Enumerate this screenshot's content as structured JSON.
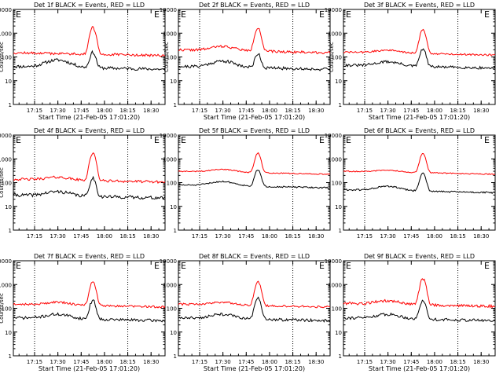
{
  "figure": {
    "title_template": "Det {n}f BLACK = Events, RED = LLD",
    "corner_mark": "E"
  },
  "colors": {
    "events": "#000000",
    "lld": "#ff0000",
    "axis": "#000000",
    "background": "#ffffff"
  },
  "chart_data": [
    {
      "type": "line",
      "title": "Det 1f BLACK = Events, RED = LLD",
      "detector": "1f",
      "xlabel": "Start Time (21-Feb-05 17:01:20)",
      "ylabel": "Counts/sec",
      "x_range": [
        "17:01:20",
        "18:39:00"
      ],
      "x_ticks": [
        "17:15",
        "17:30",
        "17:45",
        "18:00",
        "18:15",
        "18:30"
      ],
      "y_scale": "log",
      "ylim": [
        1,
        10000
      ],
      "y_ticks": [
        "1",
        "10",
        "100",
        "1000",
        "10000"
      ],
      "tick_label_visibility": "both",
      "markers": [
        "17:15",
        "18:15"
      ],
      "series": [
        {
          "name": "Events",
          "color": "#000000",
          "base": 40,
          "shoulder": 2.0,
          "peak": 180,
          "noise": 0.15,
          "seed": 11
        },
        {
          "name": "LLD",
          "color": "#ff0000",
          "base": 150,
          "shoulder": 1.0,
          "peak": 2000,
          "noise": 0.12,
          "seed": 12
        }
      ]
    },
    {
      "type": "line",
      "title": "Det 2f BLACK = Events, RED = LLD",
      "detector": "2f",
      "xlabel": "Start Time (21-Feb-05 17:01:20)",
      "ylabel": "Counts/sec",
      "x_range": [
        "17:01:20",
        "18:39:00"
      ],
      "x_ticks": [
        "17:15",
        "17:30",
        "17:45",
        "18:00",
        "18:15",
        "18:30"
      ],
      "y_scale": "log",
      "ylim": [
        1,
        10000
      ],
      "y_ticks": [
        "1",
        "10",
        "100",
        "1000",
        "10000"
      ],
      "tick_label_visibility": "both",
      "markers": [
        "17:15",
        "18:15"
      ],
      "series": [
        {
          "name": "Events",
          "color": "#000000",
          "base": 40,
          "shoulder": 1.8,
          "peak": 160,
          "noise": 0.15,
          "seed": 21
        },
        {
          "name": "LLD",
          "color": "#ff0000",
          "base": 200,
          "shoulder": 1.5,
          "peak": 2000,
          "noise": 0.12,
          "seed": 22
        }
      ]
    },
    {
      "type": "line",
      "title": "Det 3f BLACK = Events, RED = LLD",
      "detector": "3f",
      "xlabel": "Start Time (21-Feb-05 17:01:20)",
      "ylabel": "Counts/sec",
      "x_range": [
        "17:01:20",
        "18:39:00"
      ],
      "x_ticks": [
        "17:15",
        "17:30",
        "17:45",
        "18:00",
        "18:15",
        "18:30"
      ],
      "y_scale": "log",
      "ylim": [
        1,
        10000
      ],
      "y_ticks": [
        "1",
        "10",
        "100",
        "1000",
        "10000"
      ],
      "tick_label_visibility": "both",
      "markers": [
        "17:15",
        "18:15"
      ],
      "series": [
        {
          "name": "Events",
          "color": "#000000",
          "base": 45,
          "shoulder": 1.5,
          "peak": 250,
          "noise": 0.13,
          "seed": 31
        },
        {
          "name": "LLD",
          "color": "#ff0000",
          "base": 160,
          "shoulder": 1.3,
          "peak": 1700,
          "noise": 0.09,
          "seed": 32
        }
      ]
    },
    {
      "type": "line",
      "title": "Det 4f BLACK = Events, RED = LLD",
      "detector": "4f",
      "xlabel": "",
      "ylabel": "Counts/sec",
      "x_range": [
        "17:01:20",
        "18:39:00"
      ],
      "x_ticks": [
        "17:15",
        "17:30",
        "17:45",
        "18:00",
        "18:15",
        "18:30"
      ],
      "y_scale": "log",
      "ylim": [
        1,
        10000
      ],
      "y_ticks": [
        "1",
        "10",
        "100",
        "1000",
        "10000"
      ],
      "tick_label_visibility": "both",
      "markers": [
        "17:15",
        "18:15"
      ],
      "series": [
        {
          "name": "Events",
          "color": "#000000",
          "base": 30,
          "shoulder": 1.5,
          "peak": 180,
          "noise": 0.16,
          "seed": 41
        },
        {
          "name": "LLD",
          "color": "#ff0000",
          "base": 140,
          "shoulder": 1.3,
          "peak": 2000,
          "noise": 0.12,
          "seed": 42
        }
      ]
    },
    {
      "type": "line",
      "title": "Det 5f BLACK = Events, RED = LLD",
      "detector": "5f",
      "xlabel": "",
      "ylabel": "",
      "x_range": [
        "17:01:20",
        "18:39:00"
      ],
      "x_ticks": [
        "17:15",
        "17:30",
        "17:45",
        "18:00",
        "18:15",
        "18:30"
      ],
      "y_scale": "log",
      "ylim": [
        1,
        10000
      ],
      "y_ticks": [
        "1",
        "10",
        "100",
        "1000",
        "10000"
      ],
      "tick_label_visibility": "both",
      "markers": [
        "17:15",
        "18:15"
      ],
      "series": [
        {
          "name": "Events",
          "color": "#000000",
          "base": 80,
          "shoulder": 1.5,
          "peak": 400,
          "noise": 0.07,
          "seed": 51
        },
        {
          "name": "LLD",
          "color": "#ff0000",
          "base": 300,
          "shoulder": 1.3,
          "peak": 2000,
          "noise": 0.05,
          "seed": 52
        }
      ]
    },
    {
      "type": "line",
      "title": "Det 6f BLACK = Events, RED = LLD",
      "detector": "6f",
      "xlabel": "",
      "ylabel": "",
      "x_range": [
        "17:01:20",
        "18:39:00"
      ],
      "x_ticks": [
        "17:15",
        "17:30",
        "17:45",
        "18:00",
        "18:15",
        "18:30"
      ],
      "y_scale": "log",
      "ylim": [
        1,
        10000
      ],
      "y_ticks": [
        "1",
        "10",
        "100",
        "1000",
        "10000"
      ],
      "tick_label_visibility": "both",
      "markers": [
        "17:15",
        "18:15"
      ],
      "series": [
        {
          "name": "Events",
          "color": "#000000",
          "base": 50,
          "shoulder": 1.5,
          "peak": 300,
          "noise": 0.08,
          "seed": 61
        },
        {
          "name": "LLD",
          "color": "#ff0000",
          "base": 300,
          "shoulder": 1.2,
          "peak": 2000,
          "noise": 0.05,
          "seed": 62
        }
      ]
    },
    {
      "type": "line",
      "title": "Det 7f BLACK = Events, RED = LLD",
      "detector": "7f",
      "xlabel": "Start Time (21-Feb-05 17:01:20)",
      "ylabel": "Counts/sec",
      "x_range": [
        "17:01:20",
        "18:39:00"
      ],
      "x_ticks": [
        "17:15",
        "17:30",
        "17:45",
        "18:00",
        "18:15",
        "18:30"
      ],
      "y_scale": "log",
      "ylim": [
        1,
        10000
      ],
      "y_ticks": [
        "1",
        "10",
        "100",
        "1000",
        "10000"
      ],
      "tick_label_visibility": "both",
      "markers": [
        "17:15",
        "18:15"
      ],
      "series": [
        {
          "name": "Events",
          "color": "#000000",
          "base": 40,
          "shoulder": 1.5,
          "peak": 250,
          "noise": 0.14,
          "seed": 71
        },
        {
          "name": "LLD",
          "color": "#ff0000",
          "base": 150,
          "shoulder": 1.3,
          "peak": 1500,
          "noise": 0.1,
          "seed": 72
        }
      ]
    },
    {
      "type": "line",
      "title": "Det 8f BLACK = Events, RED = LLD",
      "detector": "8f",
      "xlabel": "Start Time (21-Feb-05 17:01:20)",
      "ylabel": "",
      "x_range": [
        "17:01:20",
        "18:39:00"
      ],
      "x_ticks": [
        "17:15",
        "17:30",
        "17:45",
        "18:00",
        "18:15",
        "18:30"
      ],
      "y_scale": "log",
      "ylim": [
        1,
        10000
      ],
      "y_ticks": [
        "1",
        "10",
        "100",
        "1000",
        "10000"
      ],
      "tick_label_visibility": "both",
      "markers": [
        "17:15",
        "18:15"
      ],
      "series": [
        {
          "name": "Events",
          "color": "#000000",
          "base": 40,
          "shoulder": 1.5,
          "peak": 300,
          "noise": 0.13,
          "seed": 81
        },
        {
          "name": "LLD",
          "color": "#ff0000",
          "base": 150,
          "shoulder": 1.3,
          "peak": 1500,
          "noise": 0.1,
          "seed": 82
        }
      ]
    },
    {
      "type": "line",
      "title": "Det 9f BLACK = Events, RED = LLD",
      "detector": "9f",
      "xlabel": "Start Time (21-Feb-05 17:01:20)",
      "ylabel": "",
      "x_range": [
        "17:01:20",
        "18:39:00"
      ],
      "x_ticks": [
        "17:15",
        "17:30",
        "17:45",
        "18:00",
        "18:15",
        "18:30"
      ],
      "y_scale": "log",
      "ylim": [
        1,
        10000
      ],
      "y_ticks": [
        "1",
        "10",
        "100",
        "1000",
        "10000"
      ],
      "tick_label_visibility": "both",
      "markers": [
        "17:15",
        "18:15"
      ],
      "series": [
        {
          "name": "Events",
          "color": "#000000",
          "base": 40,
          "shoulder": 1.5,
          "peak": 250,
          "noise": 0.14,
          "seed": 91
        },
        {
          "name": "LLD",
          "color": "#ff0000",
          "base": 160,
          "shoulder": 1.4,
          "peak": 2000,
          "noise": 0.13,
          "seed": 92
        }
      ]
    }
  ]
}
